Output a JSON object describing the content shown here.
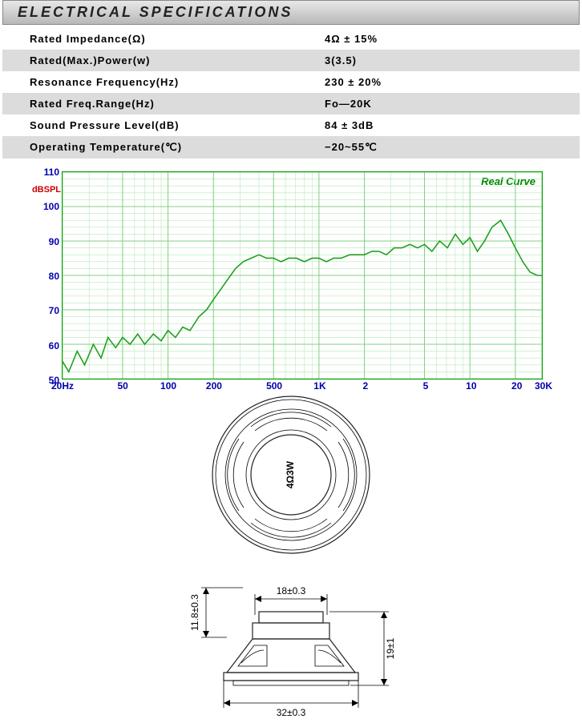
{
  "header": "ELECTRICAL SPECIFICATIONS",
  "specs": [
    {
      "label": "Rated  Impedance(Ω)",
      "value": "4Ω ± 15%"
    },
    {
      "label": "Rated(Max.)Power(w)",
      "value": "3(3.5)"
    },
    {
      "label": "Resonance  Frequency(Hz)",
      "value": "230 ± 20%"
    },
    {
      "label": "Rated  Freq.Range(Hz)",
      "value": "Fo—20K"
    },
    {
      "label": "Sound  Pressure  Level(dB)",
      "value": "84 ± 3dB"
    },
    {
      "label": "Operating  Temperature(℃)",
      "value": "−20~55℃"
    }
  ],
  "chart": {
    "type": "line",
    "title": "Real Curve",
    "y_unit_label": "dBSPL",
    "ylim": [
      50,
      110
    ],
    "ytick_step": 10,
    "y_ticks": [
      50,
      60,
      70,
      80,
      90,
      100,
      110
    ],
    "x_log": true,
    "x_ticks": [
      "20Hz",
      "50",
      "100",
      "200",
      "500",
      "1K",
      "2",
      "5",
      "10",
      "20",
      "30K"
    ],
    "x_tick_hz": [
      20,
      50,
      100,
      200,
      500,
      1000,
      2000,
      5000,
      10000,
      20000,
      30000
    ],
    "grid_color": "#80d080",
    "minor_grid_color": "#b8e8b8",
    "curve_color": "#20a020",
    "background_color": "#ffffff",
    "axis_label_color": "#0000aa",
    "title_color": "#008800",
    "curve_points_hz_db": [
      [
        20,
        55
      ],
      [
        22,
        52
      ],
      [
        25,
        58
      ],
      [
        28,
        54
      ],
      [
        32,
        60
      ],
      [
        36,
        56
      ],
      [
        40,
        62
      ],
      [
        45,
        59
      ],
      [
        50,
        62
      ],
      [
        56,
        60
      ],
      [
        63,
        63
      ],
      [
        70,
        60
      ],
      [
        80,
        63
      ],
      [
        90,
        61
      ],
      [
        100,
        64
      ],
      [
        112,
        62
      ],
      [
        125,
        65
      ],
      [
        140,
        64
      ],
      [
        160,
        68
      ],
      [
        180,
        70
      ],
      [
        200,
        73
      ],
      [
        224,
        76
      ],
      [
        250,
        79
      ],
      [
        280,
        82
      ],
      [
        315,
        84
      ],
      [
        355,
        85
      ],
      [
        400,
        86
      ],
      [
        450,
        85
      ],
      [
        500,
        85
      ],
      [
        560,
        84
      ],
      [
        630,
        85
      ],
      [
        710,
        85
      ],
      [
        800,
        84
      ],
      [
        900,
        85
      ],
      [
        1000,
        85
      ],
      [
        1120,
        84
      ],
      [
        1250,
        85
      ],
      [
        1400,
        85
      ],
      [
        1600,
        86
      ],
      [
        1800,
        86
      ],
      [
        2000,
        86
      ],
      [
        2240,
        87
      ],
      [
        2500,
        87
      ],
      [
        2800,
        86
      ],
      [
        3150,
        88
      ],
      [
        3550,
        88
      ],
      [
        4000,
        89
      ],
      [
        4500,
        88
      ],
      [
        5000,
        89
      ],
      [
        5600,
        87
      ],
      [
        6300,
        90
      ],
      [
        7100,
        88
      ],
      [
        8000,
        92
      ],
      [
        9000,
        89
      ],
      [
        10000,
        91
      ],
      [
        11200,
        87
      ],
      [
        12500,
        90
      ],
      [
        14000,
        94
      ],
      [
        16000,
        96
      ],
      [
        18000,
        92
      ],
      [
        20000,
        88
      ],
      [
        22400,
        84
      ],
      [
        25000,
        81
      ],
      [
        28000,
        80
      ],
      [
        30000,
        80
      ]
    ]
  },
  "top_view": {
    "label": "4Ω3W",
    "label_rotation_deg": -90,
    "outer_stroke": "#333333",
    "fill": "#e6e6e6"
  },
  "side_view": {
    "dimensions": {
      "width_top": "18±0.3",
      "width_bottom": "32±0.3",
      "height_total": "19±1",
      "height_cap": "11.8±0.3"
    },
    "stroke": "#000000",
    "fill_light": "#f4f4f4",
    "fill_mid": "#d8d8d8"
  }
}
